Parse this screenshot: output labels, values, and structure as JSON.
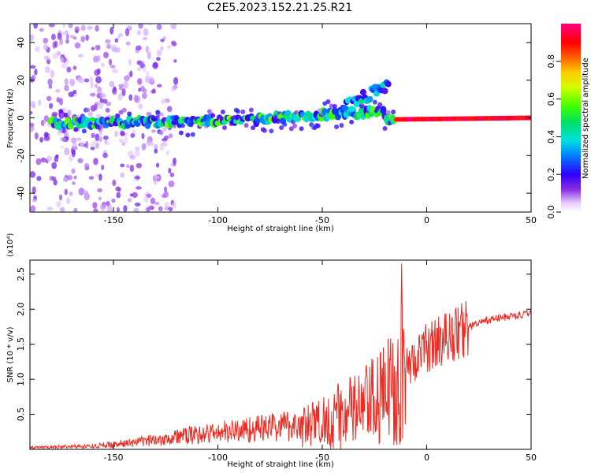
{
  "title": "C2E5.2023.152.21.25.R21",
  "chart_data": [
    {
      "type": "heatmap",
      "name": "spectrogram",
      "xlabel": "Height of straight line (km)",
      "ylabel": "Frequency (Hz)",
      "xlim": [
        -190,
        50
      ],
      "ylim": [
        -50,
        50
      ],
      "xticks": [
        "-150",
        "-100",
        "-50",
        "0",
        "50"
      ],
      "yticks": [
        "-40",
        "-20",
        "0",
        "20",
        "40"
      ],
      "colorbar": {
        "label": "Normalized spectral amplitude",
        "range": [
          0,
          1
        ],
        "ticks": [
          "0.0",
          "0.2",
          "0.4",
          "0.6",
          "0.8"
        ]
      },
      "features": [
        {
          "description": "main tone trace",
          "x_start": -180,
          "x_end": 50,
          "freq_start": -3,
          "freq_end": 0
        },
        {
          "description": "upward branch",
          "x_start": -40,
          "x_end": -18,
          "freq_start": 5,
          "freq_end": 18
        }
      ]
    },
    {
      "type": "line",
      "name": "snr",
      "xlabel": "Height of straight line (km)",
      "ylabel": "SNR (10 * v/v)",
      "y_multiplier": "(x10⁴)",
      "xlim": [
        -190,
        50
      ],
      "ylim": [
        0,
        2.7
      ],
      "xticks": [
        "-150",
        "-100",
        "-50",
        "0",
        "50"
      ],
      "yticks": [
        "0.5",
        "1.0",
        "1.5",
        "2.0",
        "2.5"
      ],
      "envelope_x": [
        -190,
        -160,
        -140,
        -120,
        -100,
        -80,
        -60,
        -50,
        -40,
        -30,
        -20,
        -15,
        -12,
        -10,
        -5,
        0,
        10,
        20,
        30,
        40,
        50
      ],
      "envelope_y": [
        0.02,
        0.04,
        0.08,
        0.15,
        0.2,
        0.25,
        0.3,
        0.4,
        0.5,
        0.6,
        0.75,
        1.0,
        1.2,
        1.15,
        1.3,
        1.45,
        1.6,
        1.75,
        1.85,
        1.9,
        1.93
      ],
      "series_color": "#ee2a22"
    }
  ]
}
